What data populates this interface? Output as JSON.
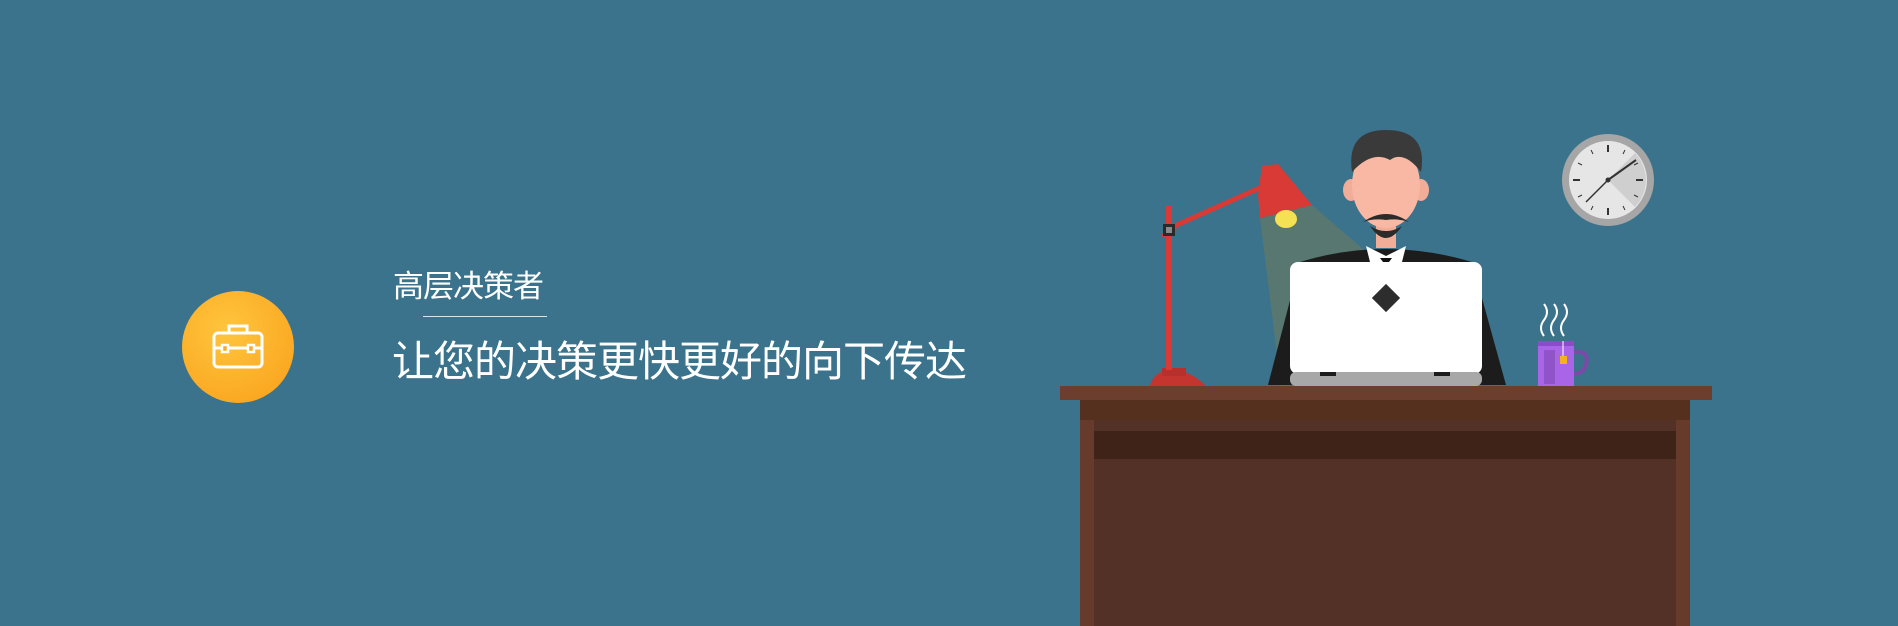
{
  "feature": {
    "icon": "briefcase-icon",
    "subtitle": "高层决策者",
    "headline": "让您的决策更快更好的向下传达"
  },
  "illustration": {
    "items": [
      "desk",
      "desk-lamp",
      "businessman",
      "laptop",
      "wall-clock",
      "coffee-mug"
    ]
  },
  "colors": {
    "background": "#3b728c",
    "badge_orange": "#fbaa24",
    "desk_brown": "#563226",
    "lamp_red": "#d93a35"
  }
}
